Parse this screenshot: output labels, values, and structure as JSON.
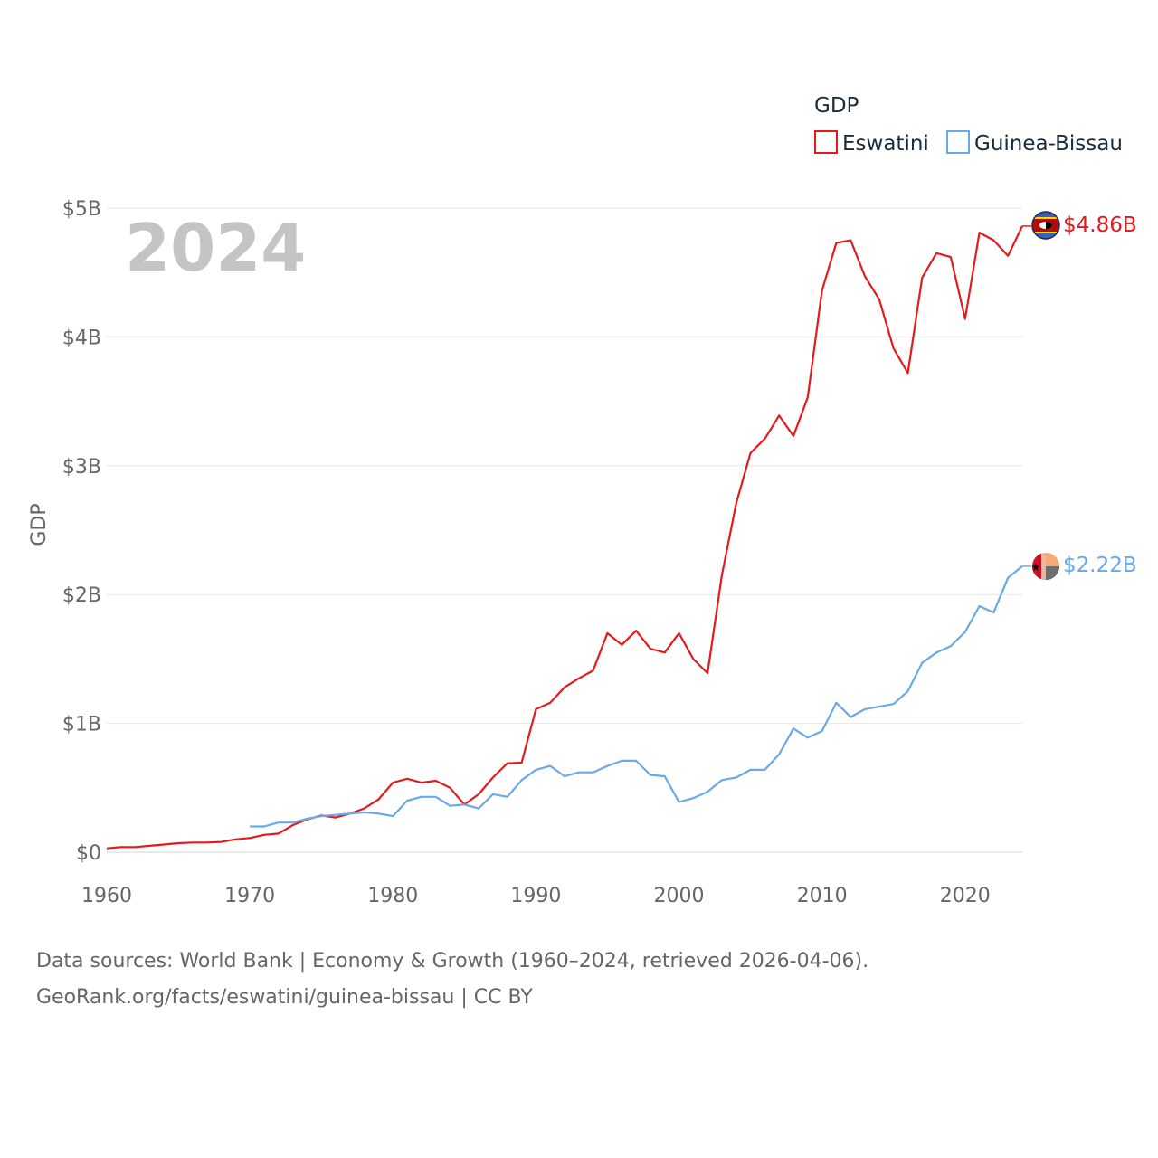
{
  "chart_data": {
    "type": "line",
    "title": "2024",
    "ylabel": "GDP",
    "xlabel": "",
    "legend": {
      "title": "GDP",
      "position": "top-right"
    },
    "xlim": [
      1960,
      2024
    ],
    "ylim": [
      0,
      5
    ],
    "y_unit": "billions USD",
    "x_ticks": [
      "1960",
      "1970",
      "1980",
      "1990",
      "2000",
      "2010",
      "2020"
    ],
    "y_ticks": [
      {
        "value": 0,
        "label": "$0"
      },
      {
        "value": 1,
        "label": "$1B"
      },
      {
        "value": 2,
        "label": "$2B"
      },
      {
        "value": 3,
        "label": "$3B"
      },
      {
        "value": 4,
        "label": "$4B"
      },
      {
        "value": 5,
        "label": "$5B"
      }
    ],
    "grid": true,
    "series": [
      {
        "name": "Eswatini",
        "color": "#e41a1c",
        "end_label": "$4.86B",
        "start_year": 1960,
        "values": [
          0.03,
          0.04,
          0.04,
          0.05,
          0.06,
          0.07,
          0.075,
          0.075,
          0.08,
          0.1,
          0.11,
          0.135,
          0.145,
          0.21,
          0.255,
          0.285,
          0.27,
          0.3,
          0.34,
          0.41,
          0.54,
          0.57,
          0.54,
          0.555,
          0.5,
          0.37,
          0.45,
          0.58,
          0.69,
          0.695,
          1.11,
          1.16,
          1.28,
          1.35,
          1.41,
          1.7,
          1.61,
          1.72,
          1.58,
          1.55,
          1.7,
          1.5,
          1.39,
          2.15,
          2.71,
          3.1,
          3.21,
          3.39,
          3.23,
          3.53,
          4.36,
          4.73,
          4.75,
          4.47,
          4.29,
          3.91,
          3.72,
          4.46,
          4.65,
          4.62,
          4.14,
          4.81,
          4.75,
          4.63,
          4.86
        ]
      },
      {
        "name": "Guinea-Bissau",
        "color": "#6aa9e9",
        "end_label": "$2.22B",
        "start_year": 1970,
        "values": [
          0.2,
          0.2,
          0.23,
          0.23,
          0.26,
          0.28,
          0.29,
          0.3,
          0.31,
          0.3,
          0.28,
          0.4,
          0.43,
          0.43,
          0.36,
          0.37,
          0.34,
          0.45,
          0.43,
          0.56,
          0.64,
          0.67,
          0.59,
          0.62,
          0.62,
          0.67,
          0.71,
          0.71,
          0.6,
          0.59,
          0.39,
          0.42,
          0.47,
          0.56,
          0.58,
          0.64,
          0.64,
          0.76,
          0.96,
          0.89,
          0.94,
          1.16,
          1.05,
          1.11,
          1.13,
          1.15,
          1.25,
          1.47,
          1.55,
          1.6,
          1.71,
          1.91,
          1.86,
          2.13,
          2.22
        ]
      }
    ]
  },
  "footer": {
    "line1": "Data sources: World Bank | Economy & Growth (1960–2024, retrieved 2026-04-06).",
    "line2": "GeoRank.org/facts/eswatini/guinea-bissau | CC BY"
  }
}
